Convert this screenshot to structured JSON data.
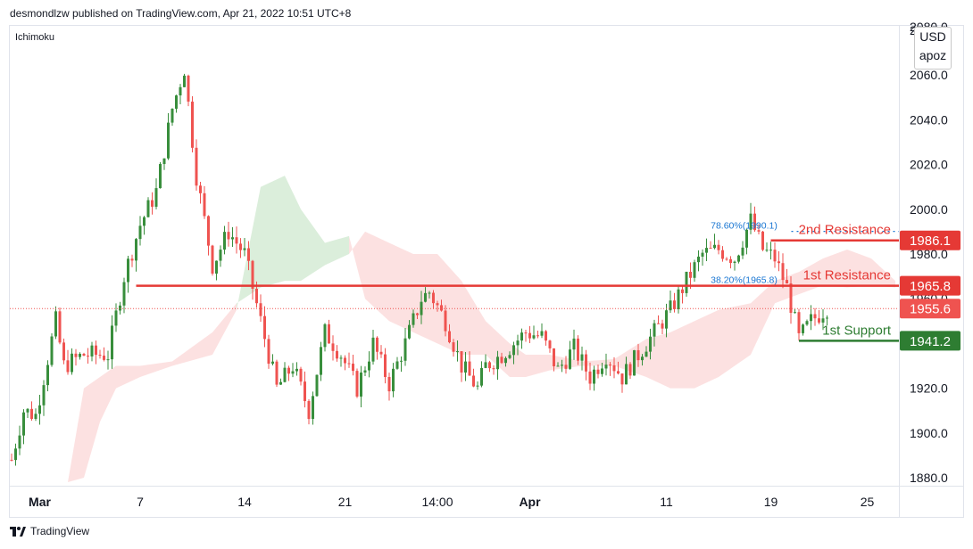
{
  "header": {
    "publisher": "desmondlzw published on TradingView.com, Apr 21, 2022 10:51 UTC+8"
  },
  "indicator_label": "Ichimoku",
  "currency_box": {
    "top": "USD",
    "bottom": "apoz"
  },
  "footer": {
    "brand": "TradingView"
  },
  "colors": {
    "up": "#388e3c",
    "down": "#ef5350",
    "resistance": "#e53935",
    "support": "#2e7d32",
    "fib": "#1976d2",
    "cloud_bull": "#d7ecd7",
    "cloud_bear": "#fcdede"
  },
  "chart_data": {
    "type": "candlestick",
    "title": "",
    "xlabel": "",
    "ylabel": "",
    "y_axis_ticks": [
      1880,
      1900,
      1920,
      1940,
      1960,
      1980,
      2000,
      2020,
      2040,
      2060,
      2080
    ],
    "y_axis_top_label": "2080.0",
    "ylim": [
      1874,
      2080
    ],
    "x_axis_ticks": [
      {
        "label": "Mar",
        "bar": 7,
        "bold": true
      },
      {
        "label": "7",
        "bar": 32,
        "bold": false
      },
      {
        "label": "14",
        "bar": 58,
        "bold": false
      },
      {
        "label": "21",
        "bar": 83,
        "bold": false
      },
      {
        "label": "14:00",
        "bar": 106,
        "bold": false
      },
      {
        "label": "Apr",
        "bar": 129,
        "bold": true
      },
      {
        "label": "11",
        "bar": 163,
        "bold": false
      },
      {
        "label": "19",
        "bar": 189,
        "bold": false
      },
      {
        "label": "25",
        "bar": 213,
        "bold": false
      }
    ],
    "bar_count": 220,
    "key_points": [
      [
        0,
        1888
      ],
      [
        3,
        1910
      ],
      [
        6,
        1908
      ],
      [
        11,
        1950
      ],
      [
        13,
        1930
      ],
      [
        18,
        1935
      ],
      [
        24,
        1935
      ],
      [
        28,
        1970
      ],
      [
        32,
        1993
      ],
      [
        36,
        2008
      ],
      [
        40,
        2045
      ],
      [
        43,
        2063
      ],
      [
        46,
        2015
      ],
      [
        50,
        1975
      ],
      [
        54,
        1990
      ],
      [
        58,
        1980
      ],
      [
        62,
        1950
      ],
      [
        66,
        1920
      ],
      [
        70,
        1930
      ],
      [
        74,
        1910
      ],
      [
        78,
        1945
      ],
      [
        82,
        1935
      ],
      [
        86,
        1920
      ],
      [
        90,
        1940
      ],
      [
        94,
        1922
      ],
      [
        98,
        1940
      ],
      [
        102,
        1960
      ],
      [
        104,
        1963
      ],
      [
        108,
        1950
      ],
      [
        112,
        1930
      ],
      [
        116,
        1920
      ],
      [
        118,
        1930
      ],
      [
        122,
        1935
      ],
      [
        128,
        1945
      ],
      [
        132,
        1943
      ],
      [
        136,
        1928
      ],
      [
        140,
        1938
      ],
      [
        144,
        1925
      ],
      [
        148,
        1935
      ],
      [
        152,
        1925
      ],
      [
        156,
        1935
      ],
      [
        160,
        1945
      ],
      [
        164,
        1955
      ],
      [
        168,
        1968
      ],
      [
        172,
        1980
      ],
      [
        176,
        1982
      ],
      [
        180,
        1978
      ],
      [
        184,
        1995
      ],
      [
        187,
        1982
      ],
      [
        190,
        1978
      ],
      [
        193,
        1965
      ],
      [
        196,
        1942
      ],
      [
        199,
        1950
      ],
      [
        203,
        1956
      ]
    ],
    "ichimoku_cloud": [
      {
        "bar": 14,
        "a": 1878,
        "b": 1878
      },
      {
        "bar": 18,
        "a": 1880,
        "b": 1920
      },
      {
        "bar": 22,
        "a": 1905,
        "b": 1925
      },
      {
        "bar": 26,
        "a": 1920,
        "b": 1930
      },
      {
        "bar": 32,
        "a": 1925,
        "b": 1930
      },
      {
        "bar": 40,
        "a": 1930,
        "b": 1932
      },
      {
        "bar": 50,
        "a": 1935,
        "b": 1945
      },
      {
        "bar": 56,
        "a": 1955,
        "b": 1958
      },
      {
        "bar": 62,
        "a": 2010,
        "b": 1965
      },
      {
        "bar": 68,
        "a": 2015,
        "b": 1968
      },
      {
        "bar": 72,
        "a": 2000,
        "b": 1968
      },
      {
        "bar": 78,
        "a": 1985,
        "b": 1975
      },
      {
        "bar": 84,
        "a": 1988,
        "b": 1980
      },
      {
        "bar": 88,
        "a": 1960,
        "b": 1990
      },
      {
        "bar": 94,
        "a": 1950,
        "b": 1985
      },
      {
        "bar": 100,
        "a": 1945,
        "b": 1980
      },
      {
        "bar": 106,
        "a": 1940,
        "b": 1980
      },
      {
        "bar": 112,
        "a": 1935,
        "b": 1968
      },
      {
        "bar": 118,
        "a": 1935,
        "b": 1950
      },
      {
        "bar": 124,
        "a": 1925,
        "b": 1940
      },
      {
        "bar": 128,
        "a": 1925,
        "b": 1935
      },
      {
        "bar": 134,
        "a": 1928,
        "b": 1935
      },
      {
        "bar": 142,
        "a": 1930,
        "b": 1932
      },
      {
        "bar": 150,
        "a": 1930,
        "b": 1933
      },
      {
        "bar": 158,
        "a": 1925,
        "b": 1942
      },
      {
        "bar": 164,
        "a": 1920,
        "b": 1945
      },
      {
        "bar": 170,
        "a": 1920,
        "b": 1950
      },
      {
        "bar": 176,
        "a": 1925,
        "b": 1955
      },
      {
        "bar": 184,
        "a": 1935,
        "b": 1958
      },
      {
        "bar": 190,
        "a": 1958,
        "b": 1968
      },
      {
        "bar": 196,
        "a": 1962,
        "b": 1972
      },
      {
        "bar": 202,
        "a": 1966,
        "b": 1978
      },
      {
        "bar": 208,
        "a": 1965,
        "b": 1982
      },
      {
        "bar": 214,
        "a": 1966,
        "b": 1978
      },
      {
        "bar": 220,
        "a": 1965,
        "b": 1968
      }
    ],
    "levels": [
      {
        "name": "2nd Resistance",
        "price_label": "1986.1",
        "value": 1986.1,
        "from_bar": 189,
        "color": "#e53935"
      },
      {
        "name": "1st Resistance",
        "price_label": "1965.8",
        "value": 1965.8,
        "from_bar": 31,
        "color": "#e53935"
      },
      {
        "name": "1st Support",
        "price_label": "1941.2",
        "value": 1941.2,
        "from_bar": 196,
        "color": "#2e7d32"
      }
    ],
    "current_price": {
      "label": "1955.6",
      "value": 1955.6
    },
    "fib_levels": [
      {
        "label": "78.60%(1990.1)",
        "value": 1990.1,
        "from_bar": 183
      },
      {
        "label": "38.20%(1965.8)",
        "value": 1965.8,
        "from_bar": 183
      }
    ]
  }
}
